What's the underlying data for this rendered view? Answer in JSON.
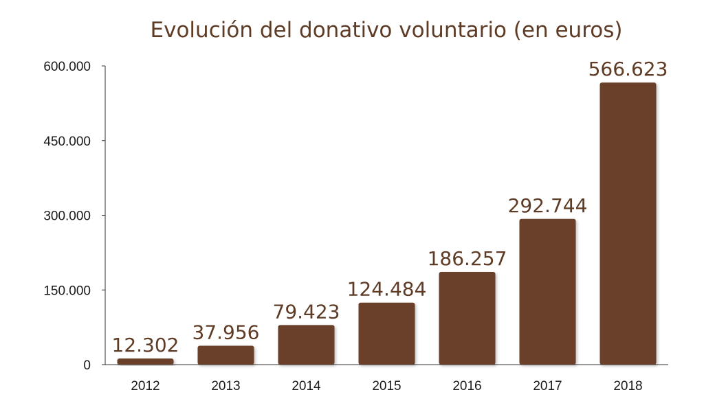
{
  "chart_data": {
    "type": "bar",
    "title": "Evolución del donativo voluntario (en euros)",
    "categories": [
      "2012",
      "2013",
      "2014",
      "2015",
      "2016",
      "2017",
      "2018"
    ],
    "values": [
      12302,
      37956,
      79423,
      124484,
      186257,
      292744,
      566623
    ],
    "data_labels": [
      "12.302",
      "37.956",
      "79.423",
      "124.484",
      "186.257",
      "292.744",
      "566.623"
    ],
    "y_ticks": [
      0,
      150000,
      300000,
      450000,
      600000
    ],
    "y_tick_labels": [
      "0",
      "150.000",
      "300.000",
      "450.000",
      "600.000"
    ],
    "xlabel": "",
    "ylabel": "",
    "ylim": [
      0,
      600000
    ],
    "grid": false,
    "legend": "none",
    "bar_color": "#6b4129",
    "label_color": "#5e3b25"
  }
}
